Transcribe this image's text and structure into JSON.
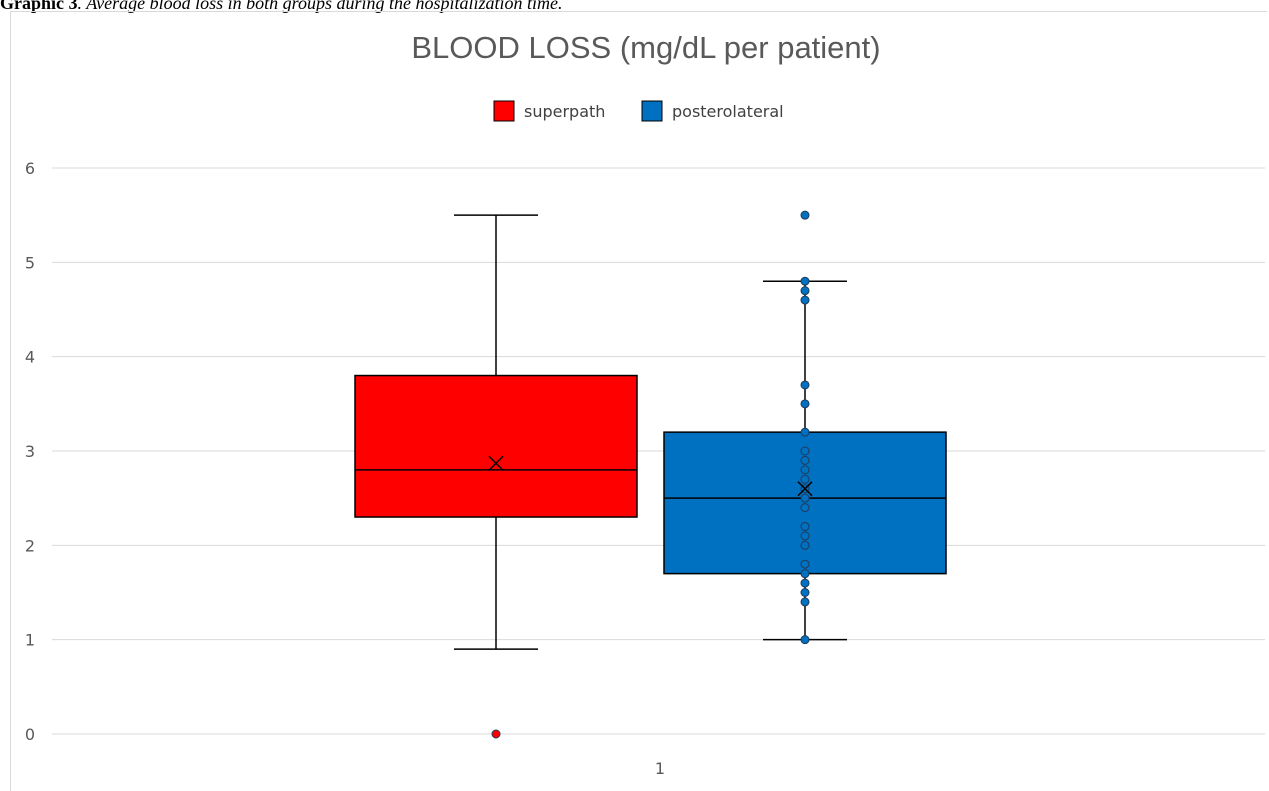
{
  "caption": {
    "label": "Graphic 3",
    "text": ". Average blood loss in both groups during the hospitalization time."
  },
  "colors": {
    "superpath": "#ff0000",
    "posterolateral": "#0070c0",
    "grid": "#d9d9d9",
    "line": "#000000"
  },
  "chart_data": {
    "type": "box",
    "title": "BLOOD LOSS (mg/dL per patient)",
    "xlabel": "",
    "ylabel": "",
    "categories": [
      "1"
    ],
    "ylim": [
      0,
      6
    ],
    "yticks": [
      "0",
      "1",
      "2",
      "3",
      "4",
      "5",
      "6"
    ],
    "grid": true,
    "legend_position": "top",
    "series": [
      {
        "name": "superpath",
        "color": "#ff0000",
        "min": 0.9,
        "q1": 2.3,
        "median": 2.8,
        "q3": 3.8,
        "max": 5.5,
        "mean": 2.87,
        "outliers": [
          0.0
        ],
        "points": []
      },
      {
        "name": "posterolateral",
        "color": "#0070c0",
        "min": 1.0,
        "q1": 1.7,
        "median": 2.5,
        "q3": 3.2,
        "max": 4.8,
        "mean": 2.6,
        "outliers": [
          5.5
        ],
        "points": [
          1.0,
          1.4,
          1.5,
          1.6,
          1.7,
          1.8,
          2.0,
          2.1,
          2.2,
          2.4,
          2.5,
          2.6,
          2.7,
          2.8,
          2.9,
          3.0,
          3.2,
          3.5,
          3.7,
          4.6,
          4.7,
          4.8
        ]
      }
    ]
  }
}
